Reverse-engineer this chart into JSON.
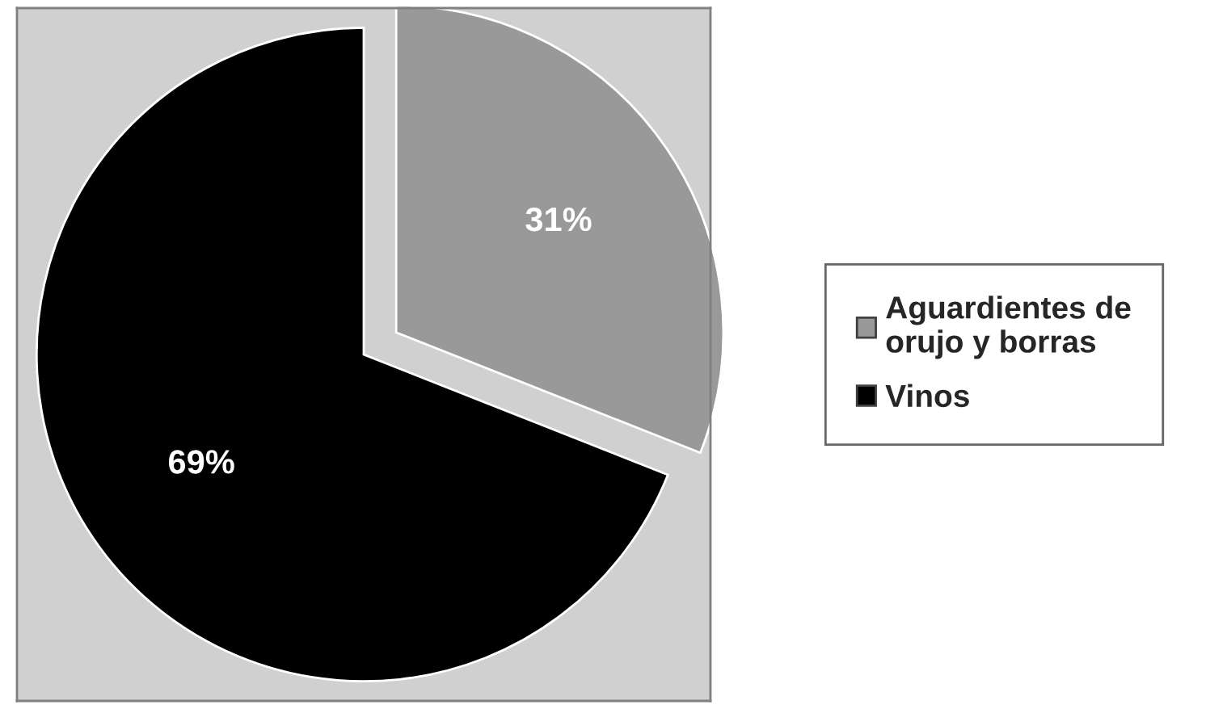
{
  "chart_data": {
    "type": "pie",
    "categories": [
      "Aguardientes de\norujo y borras",
      "Vinos"
    ],
    "values": [
      31,
      69
    ],
    "colors": [
      "#999999",
      "#000000"
    ],
    "value_labels": [
      "31%",
      "69%"
    ],
    "legend": "right"
  }
}
